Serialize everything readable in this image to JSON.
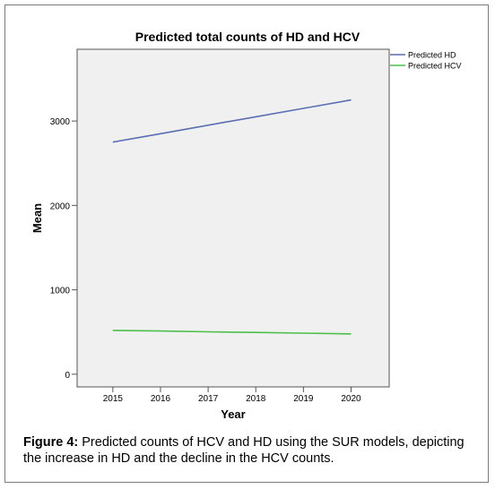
{
  "chart_data": {
    "type": "line",
    "title": "Predicted total counts of HD and HCV",
    "xlabel": "Year",
    "ylabel": "Mean",
    "x": [
      2015,
      2016,
      2017,
      2018,
      2019,
      2020
    ],
    "xlim": [
      2014.25,
      2020.8
    ],
    "ylim": [
      -150,
      3850
    ],
    "yticks": [
      0,
      1000,
      2000,
      3000
    ],
    "grid": false,
    "legend_position": "top-right",
    "series": [
      {
        "name": "Predicted HD",
        "color": "#5a6fb3",
        "values": [
          2750,
          2850,
          2950,
          3050,
          3150,
          3250
        ]
      },
      {
        "name": "Predicted HCV",
        "color": "#4cbf4c",
        "values": [
          520,
          512,
          503,
          495,
          487,
          478
        ]
      }
    ]
  },
  "caption": {
    "label": "Figure 4:",
    "text": " Predicted counts of HCV and HD using the SUR models, depicting the increase in HD and the decline in the HCV counts."
  }
}
